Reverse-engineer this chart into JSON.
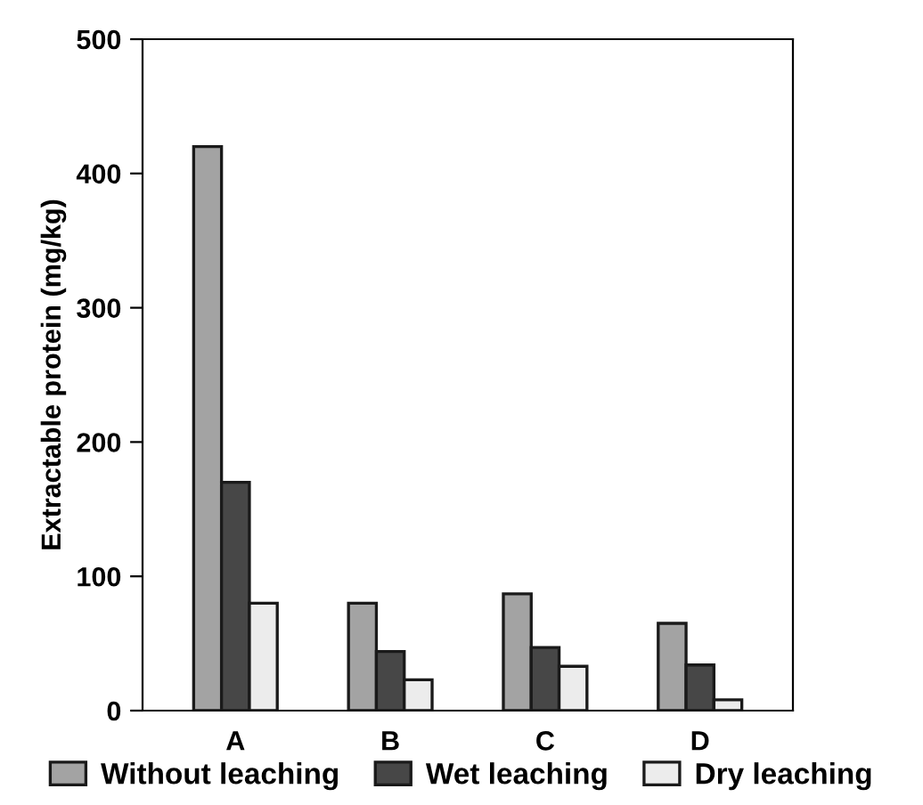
{
  "chart_data": {
    "type": "bar",
    "ylabel": "Extractable protein (mg/kg)",
    "categories": [
      "A",
      "B",
      "C",
      "D"
    ],
    "series": [
      {
        "name": "Without leaching",
        "color": "#a3a3a3",
        "values": [
          420,
          80,
          87,
          65
        ]
      },
      {
        "name": "Wet leaching",
        "color": "#474747",
        "values": [
          170,
          44,
          47,
          34
        ]
      },
      {
        "name": "Dry leaching",
        "color": "#ececec",
        "values": [
          80,
          23,
          33,
          8
        ]
      }
    ],
    "ylim": [
      0,
      500
    ],
    "yticks": [
      0,
      100,
      200,
      300,
      400,
      500
    ],
    "grid": false,
    "legend": "bottom"
  }
}
